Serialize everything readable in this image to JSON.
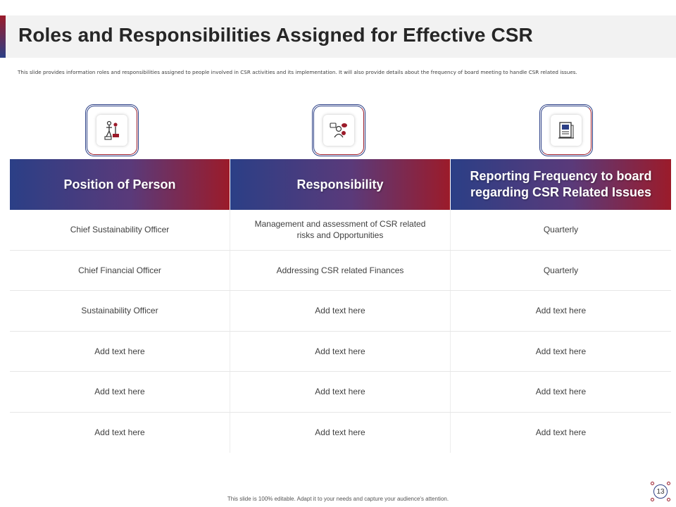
{
  "slide": {
    "title": "Roles and Responsibilities Assigned for Effective CSR",
    "subtitle": "This slide provides information  roles and responsibilities  assigned to people involved in CSR activities and its implementation.  It will also provide details about the frequency of board meeting to handle CSR related issues.",
    "footer": "This slide is 100% editable. Adapt it to your needs and capture your audience's attention.",
    "page_number": "13"
  },
  "icons": [
    "teamwork-achievement-icon",
    "presenter-chat-icon",
    "report-document-icon"
  ],
  "colors": {
    "accent_blue": "#2b3f86",
    "accent_red": "#9b1b2a"
  },
  "table": {
    "headers": [
      "Position of Person",
      "Responsibility",
      "Reporting Frequency to board regarding CSR Related Issues"
    ],
    "rows": [
      [
        "Chief Sustainability Officer",
        "Management  and  assessment  of CSR related risks and Opportunities",
        "Quarterly"
      ],
      [
        "Chief Financial Officer",
        "Addressing CSR related Finances",
        "Quarterly"
      ],
      [
        "Sustainability Officer",
        "Add text here",
        "Add text here"
      ],
      [
        "Add text here",
        "Add text here",
        "Add text here"
      ],
      [
        "Add text here",
        "Add text here",
        "Add text here"
      ],
      [
        "Add text here",
        "Add text here",
        "Add text here"
      ]
    ]
  }
}
